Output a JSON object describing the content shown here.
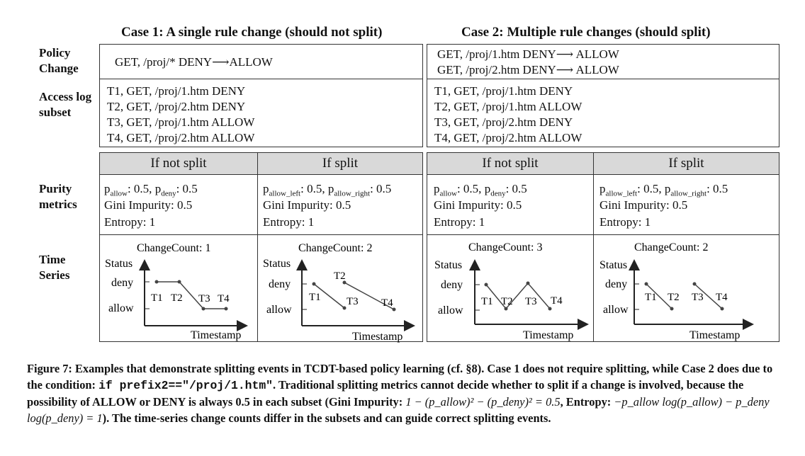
{
  "case1": {
    "title": "Case 1: A single rule change (should not split)",
    "policy": [
      "GET, /proj/* DENY⟶ALLOW"
    ],
    "log": [
      "T1, GET, /proj/1.htm DENY",
      "T2, GET, /proj/2.htm DENY",
      "T3, GET, /proj/1.htm ALLOW",
      "T4, GET, /proj/2.htm ALLOW"
    ]
  },
  "case2": {
    "title": "Case 2: Multiple rule changes (should split)",
    "policy": [
      "GET, /proj/1.htm DENY⟶ ALLOW",
      "GET, /proj/2.htm DENY⟶ ALLOW"
    ],
    "log": [
      "T1, GET, /proj/1.htm DENY",
      "T2, GET, /proj/1.htm ALLOW",
      "T3, GET, /proj/2.htm DENY",
      "T4, GET, /proj/2.htm ALLOW"
    ]
  },
  "rows": {
    "policy_change": "Policy Change",
    "access_log": "Access log subset",
    "purity": "Purity metrics",
    "time_series": "Time Series"
  },
  "headers": [
    "If not split",
    "If split",
    "If not split",
    "If split"
  ],
  "metrics": {
    "p": "p",
    "allow": "allow",
    "deny": "deny",
    "allow_left": "allow_left",
    "allow_right": "allow_right",
    "half": ": 0.5",
    "half_sep": ": 0.5, ",
    "gini": "Gini Impurity: 0.5",
    "entropy": "Entropy: 1"
  },
  "plots": {
    "status": "Status",
    "deny": "deny",
    "allow": "allow",
    "timestamp": "Timestamp",
    "t1": "T1",
    "t2": "T2",
    "t3": "T3",
    "t4": "T4",
    "counts": [
      "ChangeCount: 1",
      "ChangeCount: 2",
      "ChangeCount: 3",
      "ChangeCount: 2"
    ]
  },
  "caption": {
    "label": "Figure 7: Examples that demonstrate splitting events in TCDT-based policy learning (cf. §8). Case 1 does not require splitting, while Case 2 does due to the condition:",
    "code": "if prefix2==\"/proj/1.htm\"",
    "text2": ". Traditional splitting metrics cannot decide whether to split if a change is involved, because the possibility of ALLOW or DENY is always 0.5 in each subset (Gini Impurity:",
    "gini_formula": "1 − (p_allow)² − (p_deny)² = 0.5",
    "entropy_label": ", Entropy:",
    "entropy_formula": "−p_allow log(p_allow) − p_deny log(p_deny) = 1",
    "text3": "). The time-series change counts differ in the subsets and can guide correct splitting events."
  }
}
